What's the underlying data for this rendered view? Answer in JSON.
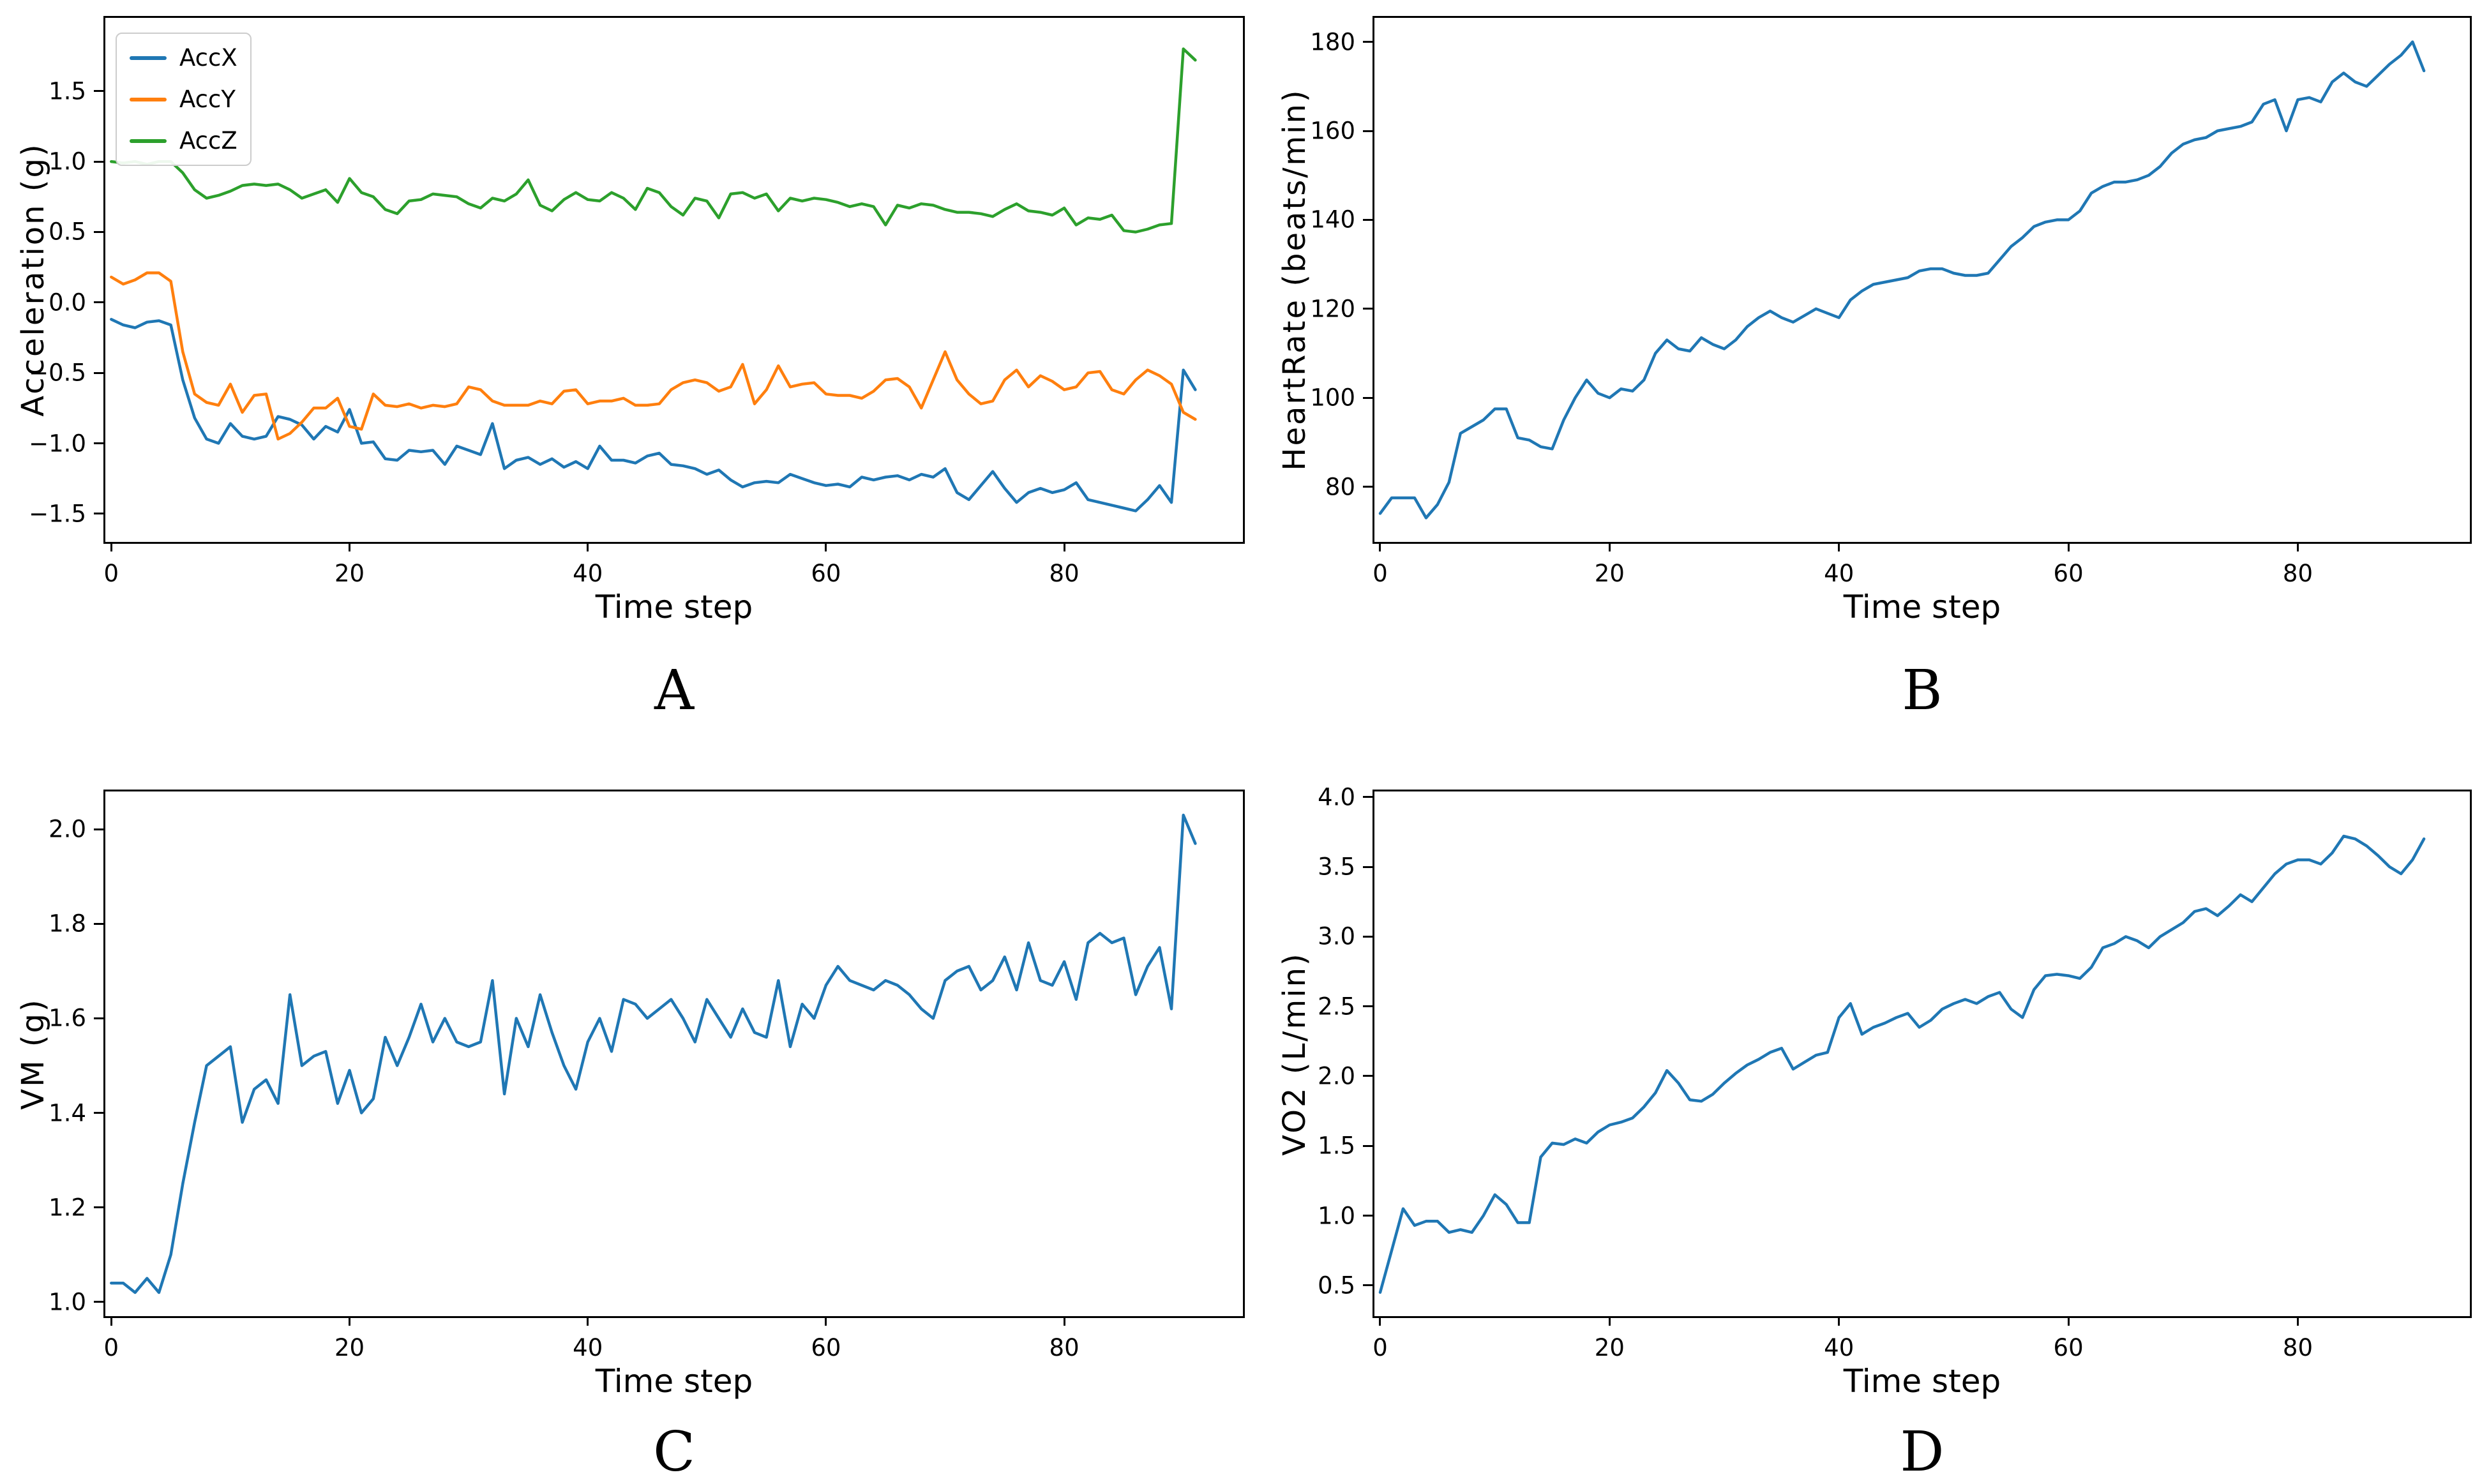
{
  "figure": {
    "background": "#ffffff",
    "x_axis_note": "x = time-step index 0..91, step 1"
  },
  "chart_data": [
    {
      "type": "line",
      "caption": "A",
      "xlabel": "Time step",
      "ylabel": "Acceleration (g)",
      "xlim": [
        -0.5,
        95
      ],
      "ylim": [
        -1.7,
        2.02
      ],
      "xtick_values": [
        0,
        20,
        40,
        60,
        80
      ],
      "xtick_labels": [
        "0",
        "20",
        "40",
        "60",
        "80"
      ],
      "ytick_values": [
        -1.5,
        -1.0,
        -0.5,
        0.0,
        0.5,
        1.0,
        1.5
      ],
      "ytick_labels": [
        "−1.5",
        "−1.0",
        "−0.5",
        "0.0",
        "0.5",
        "1.0",
        "1.5"
      ],
      "grid": false,
      "legend": {
        "position": "upper-left",
        "entries": [
          "AccX",
          "AccY",
          "AccZ"
        ]
      },
      "x": {
        "start": 0,
        "end": 91,
        "step": 1
      },
      "series": [
        {
          "name": "AccX",
          "color": "#1f77b4",
          "values": [
            -0.12,
            -0.16,
            -0.18,
            -0.14,
            -0.13,
            -0.16,
            -0.55,
            -0.82,
            -0.97,
            -1.0,
            -0.86,
            -0.95,
            -0.97,
            -0.95,
            -0.81,
            -0.83,
            -0.87,
            -0.97,
            -0.88,
            -0.92,
            -0.76,
            -1.0,
            -0.99,
            -1.11,
            -1.12,
            -1.05,
            -1.06,
            -1.05,
            -1.15,
            -1.02,
            -1.05,
            -1.08,
            -0.86,
            -1.18,
            -1.12,
            -1.1,
            -1.15,
            -1.11,
            -1.17,
            -1.13,
            -1.18,
            -1.02,
            -1.12,
            -1.12,
            -1.14,
            -1.09,
            -1.07,
            -1.15,
            -1.16,
            -1.18,
            -1.22,
            -1.19,
            -1.26,
            -1.31,
            -1.28,
            -1.27,
            -1.28,
            -1.22,
            -1.25,
            -1.28,
            -1.3,
            -1.29,
            -1.31,
            -1.24,
            -1.26,
            -1.24,
            -1.23,
            -1.26,
            -1.22,
            -1.24,
            -1.18,
            -1.35,
            -1.4,
            -1.3,
            -1.2,
            -1.32,
            -1.42,
            -1.35,
            -1.32,
            -1.35,
            -1.33,
            -1.28,
            -1.4,
            -1.42,
            -1.44,
            -1.46,
            -1.48,
            -1.4,
            -1.3,
            -1.42,
            -0.48,
            -0.62
          ]
        },
        {
          "name": "AccY",
          "color": "#ff7f0e",
          "values": [
            0.18,
            0.13,
            0.16,
            0.21,
            0.21,
            0.15,
            -0.35,
            -0.65,
            -0.71,
            -0.73,
            -0.58,
            -0.78,
            -0.66,
            -0.65,
            -0.97,
            -0.93,
            -0.85,
            -0.75,
            -0.75,
            -0.68,
            -0.88,
            -0.9,
            -0.65,
            -0.73,
            -0.74,
            -0.72,
            -0.75,
            -0.73,
            -0.74,
            -0.72,
            -0.6,
            -0.62,
            -0.7,
            -0.73,
            -0.73,
            -0.73,
            -0.7,
            -0.72,
            -0.63,
            -0.62,
            -0.72,
            -0.7,
            -0.7,
            -0.68,
            -0.73,
            -0.73,
            -0.72,
            -0.62,
            -0.57,
            -0.55,
            -0.57,
            -0.63,
            -0.6,
            -0.44,
            -0.72,
            -0.62,
            -0.45,
            -0.6,
            -0.58,
            -0.57,
            -0.65,
            -0.66,
            -0.66,
            -0.68,
            -0.63,
            -0.55,
            -0.54,
            -0.6,
            -0.75,
            -0.55,
            -0.35,
            -0.55,
            -0.65,
            -0.72,
            -0.7,
            -0.55,
            -0.48,
            -0.6,
            -0.52,
            -0.56,
            -0.62,
            -0.6,
            -0.5,
            -0.49,
            -0.62,
            -0.65,
            -0.55,
            -0.48,
            -0.52,
            -0.58,
            -0.78,
            -0.83
          ]
        },
        {
          "name": "AccZ",
          "color": "#2ca02c",
          "values": [
            1.0,
            0.99,
            1.0,
            0.98,
            1.0,
            1.0,
            0.92,
            0.8,
            0.74,
            0.76,
            0.79,
            0.83,
            0.84,
            0.83,
            0.84,
            0.8,
            0.74,
            0.77,
            0.8,
            0.71,
            0.88,
            0.78,
            0.75,
            0.66,
            0.63,
            0.72,
            0.73,
            0.77,
            0.76,
            0.75,
            0.7,
            0.67,
            0.74,
            0.72,
            0.77,
            0.87,
            0.69,
            0.65,
            0.73,
            0.78,
            0.73,
            0.72,
            0.78,
            0.74,
            0.66,
            0.81,
            0.78,
            0.68,
            0.62,
            0.74,
            0.72,
            0.6,
            0.77,
            0.78,
            0.74,
            0.77,
            0.65,
            0.74,
            0.72,
            0.74,
            0.73,
            0.71,
            0.68,
            0.7,
            0.68,
            0.55,
            0.69,
            0.67,
            0.7,
            0.69,
            0.66,
            0.64,
            0.64,
            0.63,
            0.61,
            0.66,
            0.7,
            0.65,
            0.64,
            0.62,
            0.67,
            0.55,
            0.6,
            0.59,
            0.62,
            0.51,
            0.5,
            0.52,
            0.55,
            0.56,
            1.8,
            1.72
          ]
        }
      ]
    },
    {
      "type": "line",
      "caption": "B",
      "xlabel": "Time step",
      "ylabel": "HeartRate (beats/min)",
      "xlim": [
        -0.5,
        95
      ],
      "ylim": [
        67.6,
        185.4
      ],
      "xtick_values": [
        0,
        20,
        40,
        60,
        80
      ],
      "xtick_labels": [
        "0",
        "20",
        "40",
        "60",
        "80"
      ],
      "ytick_values": [
        80,
        100,
        120,
        140,
        160,
        180
      ],
      "ytick_labels": [
        "80",
        "100",
        "120",
        "140",
        "160",
        "180"
      ],
      "grid": false,
      "legend": null,
      "x": {
        "start": 0,
        "end": 91,
        "step": 1
      },
      "series": [
        {
          "name": "HeartRate",
          "color": "#1f77b4",
          "values": [
            74,
            77.5,
            77.5,
            77.5,
            73,
            76,
            81,
            92,
            93.5,
            95,
            97.5,
            97.5,
            91,
            90.5,
            89,
            88.5,
            95,
            100,
            104,
            101,
            100,
            102,
            101.5,
            104,
            110,
            113,
            111,
            110.5,
            113.5,
            112,
            111,
            113,
            116,
            118,
            119.5,
            118,
            117,
            118.5,
            120,
            119,
            118,
            122,
            124,
            125.5,
            126,
            126.5,
            127,
            128.5,
            129,
            129,
            128,
            127.5,
            127.5,
            128,
            131,
            134,
            136,
            138.5,
            139.5,
            140,
            140,
            142,
            146,
            147.5,
            148.5,
            148.5,
            149,
            150,
            152,
            155,
            157,
            158,
            158.5,
            160,
            160.5,
            161,
            162,
            166,
            167,
            160,
            167,
            167.5,
            166.5,
            171,
            173,
            171,
            170,
            172.5,
            175,
            177,
            180,
            173.5
          ]
        }
      ]
    },
    {
      "type": "line",
      "caption": "C",
      "xlabel": "Time step",
      "ylabel": "VM (g)",
      "xlim": [
        -0.5,
        95
      ],
      "ylim": [
        0.97,
        2.08
      ],
      "xtick_values": [
        0,
        20,
        40,
        60,
        80
      ],
      "xtick_labels": [
        "0",
        "20",
        "40",
        "60",
        "80"
      ],
      "ytick_values": [
        1.0,
        1.2,
        1.4,
        1.6,
        1.8,
        2.0
      ],
      "ytick_labels": [
        "1.0",
        "1.2",
        "1.4",
        "1.6",
        "1.8",
        "2.0"
      ],
      "grid": false,
      "legend": null,
      "x": {
        "start": 0,
        "end": 91,
        "step": 1
      },
      "series": [
        {
          "name": "VM",
          "color": "#1f77b4",
          "values": [
            1.04,
            1.04,
            1.02,
            1.05,
            1.02,
            1.1,
            1.25,
            1.38,
            1.5,
            1.52,
            1.54,
            1.38,
            1.45,
            1.47,
            1.42,
            1.65,
            1.5,
            1.52,
            1.53,
            1.42,
            1.49,
            1.4,
            1.43,
            1.56,
            1.5,
            1.56,
            1.63,
            1.55,
            1.6,
            1.55,
            1.54,
            1.55,
            1.68,
            1.44,
            1.6,
            1.54,
            1.65,
            1.57,
            1.5,
            1.45,
            1.55,
            1.6,
            1.53,
            1.64,
            1.63,
            1.6,
            1.62,
            1.64,
            1.6,
            1.55,
            1.64,
            1.6,
            1.56,
            1.62,
            1.57,
            1.56,
            1.68,
            1.54,
            1.63,
            1.6,
            1.67,
            1.71,
            1.68,
            1.67,
            1.66,
            1.68,
            1.67,
            1.65,
            1.62,
            1.6,
            1.68,
            1.7,
            1.71,
            1.66,
            1.68,
            1.73,
            1.66,
            1.76,
            1.68,
            1.67,
            1.72,
            1.64,
            1.76,
            1.78,
            1.76,
            1.77,
            1.65,
            1.71,
            1.75,
            1.62,
            2.03,
            1.97
          ]
        }
      ]
    },
    {
      "type": "line",
      "caption": "D",
      "xlabel": "Time step",
      "ylabel": "VO2 (L/min)",
      "xlim": [
        -0.5,
        95
      ],
      "ylim": [
        0.28,
        4.04
      ],
      "xtick_values": [
        0,
        20,
        40,
        60,
        80
      ],
      "xtick_labels": [
        "0",
        "20",
        "40",
        "60",
        "80"
      ],
      "ytick_values": [
        0.5,
        1.0,
        1.5,
        2.0,
        2.5,
        3.0,
        3.5,
        4.0
      ],
      "ytick_labels": [
        "0.5",
        "1.0",
        "1.5",
        "2.0",
        "2.5",
        "3.0",
        "3.5",
        "4.0"
      ],
      "grid": false,
      "legend": null,
      "x": {
        "start": 0,
        "end": 91,
        "step": 1
      },
      "series": [
        {
          "name": "VO2",
          "color": "#1f77b4",
          "values": [
            0.45,
            0.75,
            1.05,
            0.93,
            0.96,
            0.96,
            0.88,
            0.9,
            0.88,
            1.0,
            1.15,
            1.08,
            0.95,
            0.95,
            1.42,
            1.52,
            1.51,
            1.55,
            1.52,
            1.6,
            1.65,
            1.67,
            1.7,
            1.78,
            1.88,
            2.04,
            1.95,
            1.83,
            1.82,
            1.87,
            1.95,
            2.02,
            2.08,
            2.12,
            2.17,
            2.2,
            2.05,
            2.1,
            2.15,
            2.17,
            2.42,
            2.52,
            2.3,
            2.35,
            2.38,
            2.42,
            2.45,
            2.35,
            2.4,
            2.48,
            2.52,
            2.55,
            2.52,
            2.57,
            2.6,
            2.48,
            2.42,
            2.62,
            2.72,
            2.73,
            2.72,
            2.7,
            2.78,
            2.92,
            2.95,
            3.0,
            2.97,
            2.92,
            3.0,
            3.05,
            3.1,
            3.18,
            3.2,
            3.15,
            3.22,
            3.3,
            3.25,
            3.35,
            3.45,
            3.52,
            3.55,
            3.55,
            3.52,
            3.6,
            3.72,
            3.7,
            3.65,
            3.58,
            3.5,
            3.45,
            3.55,
            3.7
          ]
        }
      ]
    }
  ]
}
